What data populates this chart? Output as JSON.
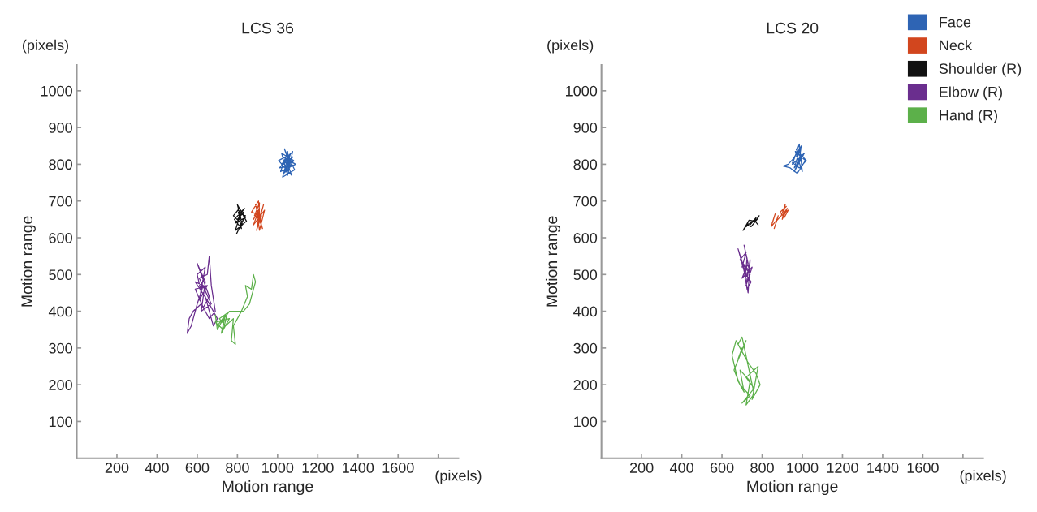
{
  "chart_data": [
    {
      "type": "line",
      "title": "LCS 36",
      "xlabel": "Motion range",
      "ylabel": "Motion range",
      "annotations": [
        "(pixels)",
        "(pixels)"
      ],
      "xlim": [
        0,
        1900
      ],
      "ylim": [
        0,
        1070
      ],
      "xticks": [
        200,
        400,
        600,
        800,
        1000,
        1200,
        1400,
        1600,
        {
          "value": 1800,
          "label": null
        }
      ],
      "yticks": [
        100,
        200,
        300,
        400,
        500,
        600,
        700,
        800,
        900,
        1000
      ],
      "grid": false,
      "legend": false,
      "series": [
        {
          "color": "#2e64b4",
          "x": [
            1030,
            1060,
            1045,
            1080,
            1020,
            1050,
            1075,
            1010,
            1065,
            1035,
            1085,
            1025,
            1055,
            1005,
            1070,
            1040,
            1090,
            1015,
            1050,
            1060,
            1030,
            1075,
            1045,
            1020,
            1065,
            1040
          ],
          "values": [
            800,
            820,
            780,
            810,
            830,
            770,
            835,
            790,
            795,
            840,
            785,
            765,
            825,
            810,
            770,
            815,
            800,
            780,
            835,
            790,
            775,
            820,
            805,
            800,
            830,
            785
          ]
        },
        {
          "color": "#d2461e",
          "x": [
            880,
            910,
            900,
            930,
            895,
            920,
            870,
            905,
            915,
            890,
            925,
            900,
            880,
            935,
            910,
            895,
            920,
            885,
            910,
            905
          ],
          "values": [
            650,
            680,
            630,
            690,
            620,
            660,
            670,
            700,
            640,
            690,
            625,
            665,
            635,
            675,
            620,
            680,
            645,
            660,
            695,
            650
          ]
        },
        {
          "color": "#111111",
          "x": [
            800,
            830,
            790,
            840,
            810,
            780,
            825,
            800,
            845,
            790,
            815,
            835,
            785,
            820,
            805,
            840,
            795,
            830
          ],
          "values": [
            650,
            670,
            640,
            655,
            680,
            660,
            635,
            690,
            645,
            620,
            665,
            680,
            650,
            625,
            670,
            660,
            610,
            650
          ]
        },
        {
          "color": "#6a2e8e",
          "x": [
            620,
            600,
            640,
            610,
            650,
            590,
            630,
            660,
            600,
            640,
            620,
            670,
            610,
            650,
            660,
            670,
            690,
            660,
            620,
            580,
            560,
            550,
            570,
            600,
            630,
            590,
            650,
            700,
            680,
            640
          ],
          "values": [
            450,
            500,
            520,
            430,
            470,
            460,
            410,
            440,
            530,
            480,
            400,
            420,
            490,
            500,
            550,
            470,
            400,
            380,
            420,
            400,
            380,
            340,
            360,
            420,
            470,
            480,
            430,
            380,
            360,
            440
          ]
        },
        {
          "color": "#5cb04a",
          "x": [
            700,
            740,
            720,
            760,
            690,
            730,
            750,
            710,
            740,
            780,
            770,
            790,
            780,
            820,
            850,
            840,
            870,
            880,
            890,
            860,
            830,
            760,
            720,
            700,
            690
          ],
          "values": [
            360,
            390,
            340,
            380,
            370,
            350,
            395,
            380,
            360,
            380,
            320,
            310,
            360,
            400,
            440,
            470,
            460,
            500,
            480,
            420,
            400,
            400,
            370,
            350,
            390
          ]
        }
      ]
    },
    {
      "type": "line",
      "title": "LCS 20",
      "xlabel": "Motion range",
      "ylabel": "Motion range",
      "annotations": [
        "(pixels)",
        "(pixels)"
      ],
      "xlim": [
        0,
        1900
      ],
      "ylim": [
        0,
        1070
      ],
      "xticks": [
        200,
        400,
        600,
        800,
        1000,
        1200,
        1400,
        1600,
        {
          "value": 1800,
          "label": null
        }
      ],
      "yticks": [
        100,
        200,
        300,
        400,
        500,
        600,
        700,
        800,
        900,
        1000
      ],
      "grid": false,
      "legend": "top right",
      "series": [
        {
          "name": "Face",
          "color": "#2e64b4",
          "x": [
            970,
            990,
            960,
            1010,
            950,
            985,
            1000,
            965,
            1015,
            975,
            940,
            905,
            930,
            955,
            995,
            980,
            1005,
            960,
            990,
            970,
            1020,
            985,
            950
          ],
          "values": [
            820,
            845,
            790,
            830,
            800,
            855,
            780,
            835,
            810,
            775,
            790,
            795,
            800,
            815,
            850,
            800,
            825,
            780,
            820,
            840,
            810,
            790,
            805
          ]
        },
        {
          "name": "Neck",
          "color": "#d2461e",
          "x": [
            850,
            865,
            845,
            875,
            860,
            880,
            870,
            895,
            915,
            900,
            925,
            905,
            930,
            910,
            890,
            920
          ],
          "values": [
            640,
            665,
            630,
            650,
            625,
            660,
            645,
            660,
            690,
            650,
            680,
            665,
            675,
            655,
            670,
            685
          ]
        },
        {
          "name": "Shoulder (R)",
          "color": "#111111",
          "x": [
            710,
            730,
            720,
            750,
            740,
            770,
            760,
            785,
            775,
            745,
            725,
            705,
            735,
            765,
            780
          ],
          "values": [
            625,
            640,
            630,
            645,
            635,
            655,
            640,
            660,
            650,
            630,
            635,
            620,
            648,
            645,
            635
          ]
        },
        {
          "name": "Elbow (R)",
          "color": "#6a2e8e",
          "x": [
            700,
            720,
            690,
            740,
            710,
            730,
            700,
            750,
            720,
            740,
            730,
            710,
            690,
            680,
            720,
            745,
            725,
            705,
            735,
            715,
            725
          ],
          "values": [
            520,
            560,
            540,
            500,
            580,
            530,
            490,
            520,
            470,
            540,
            450,
            510,
            550,
            570,
            500,
            480,
            460,
            530,
            510,
            490,
            545
          ]
        },
        {
          "name": "Hand (R)",
          "color": "#5cb04a",
          "x": [
            700,
            680,
            720,
            660,
            690,
            740,
            700,
            760,
            720,
            780,
            750,
            790,
            770,
            730,
            700,
            670,
            650,
            680,
            710,
            690,
            740,
            720,
            760,
            700,
            680
          ],
          "values": [
            300,
            270,
            320,
            240,
            200,
            170,
            150,
            190,
            220,
            250,
            160,
            200,
            230,
            260,
            290,
            320,
            280,
            210,
            180,
            240,
            210,
            145,
            175,
            330,
            310
          ]
        }
      ]
    }
  ]
}
